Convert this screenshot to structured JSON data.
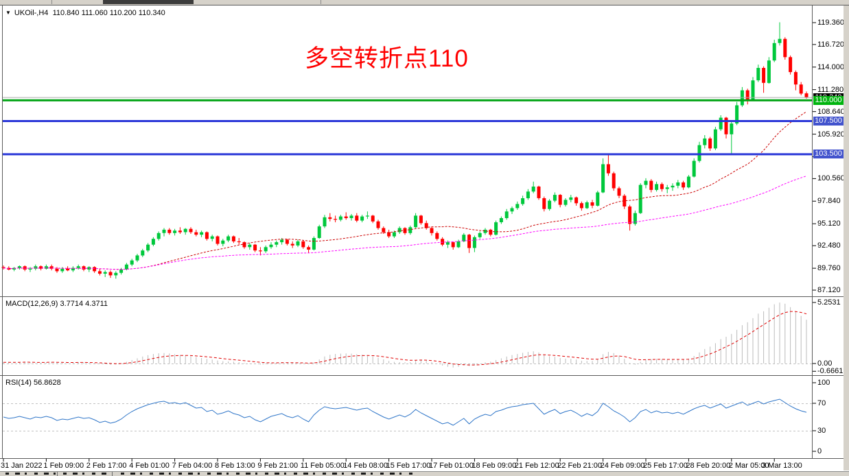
{
  "chart_header": {
    "dropdown_icon": "▼",
    "symbol": "UKOil-,H4",
    "open": "110.840",
    "high": "111.060",
    "low": "110.200",
    "close": "110.340"
  },
  "annotation": {
    "text": "多空转折点110",
    "color": "#FF0000"
  },
  "macd_panel": {
    "title": "MACD(12,26,9)",
    "current": "3.7714 4.3711"
  },
  "rsi_panel": {
    "title": "RSI(14)",
    "current": "56.8628"
  },
  "colors": {
    "candle_up": "#00C83C",
    "candle_down": "#FF0000",
    "ma_fast": "#CC0000",
    "ma_slow": "#FF00FF",
    "price_line": "#ABABAB",
    "macd_hist": "#BBBBBB",
    "macd_signal": "#E00000",
    "rsi_line": "#2E75C8",
    "level_dash": "#C0C0C0",
    "border": "#5A5A5A"
  },
  "chart_data": {
    "type": "candlestick",
    "symbol": "UKOil-",
    "timeframe": "H4",
    "title_ohlc": [
      110.84,
      111.06,
      110.2,
      110.34
    ],
    "price_ticks": [
      {
        "label": "119.360",
        "value": 119.36
      },
      {
        "label": "116.720",
        "value": 116.72
      },
      {
        "label": "114.000",
        "value": 114.0
      },
      {
        "label": "111.280",
        "value": 111.28
      },
      {
        "label": "108.640",
        "value": 108.64
      },
      {
        "label": "105.920",
        "value": 105.92
      },
      {
        "label": "103.200",
        "value": 103.2
      },
      {
        "label": "100.560",
        "value": 100.56
      },
      {
        "label": "97.840",
        "value": 97.84
      },
      {
        "label": "95.120",
        "value": 95.12
      },
      {
        "label": "92.480",
        "value": 92.48
      },
      {
        "label": "89.760",
        "value": 89.76
      },
      {
        "label": "87.120",
        "value": 87.12
      }
    ],
    "hlines": [
      {
        "label": "110.000",
        "value": 110.0,
        "line_color": "#00A313",
        "badge_color": "#00B40E"
      },
      {
        "label": "107.500",
        "value": 107.5,
        "line_color": "#2936D8",
        "badge_color": "#4253CD"
      },
      {
        "label": "103.500",
        "value": 103.5,
        "line_color": "#2936D8",
        "badge_color": "#4253CD"
      }
    ],
    "current_price": {
      "label": "110.340",
      "value": 110.34
    },
    "time_labels": [
      "31 Jan 2022",
      "1 Feb 09:00",
      "2 Feb 17:00",
      "4 Feb 01:00",
      "7 Feb 04:00",
      "8 Feb 13:00",
      "9 Feb 21:00",
      "11 Feb 05:00",
      "14 Feb 08:00",
      "15 Feb 17:00",
      "17 Feb 01:00",
      "18 Feb 09:00",
      "21 Feb 12:00",
      "22 Feb 21:00",
      "24 Feb 09:00",
      "25 Feb 17:00",
      "28 Feb 20:00",
      "2 Mar 05:00",
      "3 Mar 13:00"
    ],
    "bars_per_label": 8,
    "ma_fast_period": 26,
    "ma_slow_period": 75,
    "candles": [
      [
        89.9,
        90.1,
        89.6,
        89.8
      ],
      [
        89.8,
        90.0,
        89.5,
        89.6
      ],
      [
        89.6,
        89.9,
        89.4,
        89.8
      ],
      [
        89.8,
        90.1,
        89.6,
        90.0
      ],
      [
        90.0,
        90.1,
        89.4,
        89.6
      ],
      [
        89.6,
        89.9,
        89.3,
        89.7
      ],
      [
        89.7,
        90.2,
        89.5,
        90.0
      ],
      [
        90.0,
        90.1,
        89.5,
        89.7
      ],
      [
        89.7,
        90.2,
        89.6,
        90.0
      ],
      [
        90.0,
        90.2,
        89.5,
        89.7
      ],
      [
        89.7,
        89.9,
        89.2,
        89.4
      ],
      [
        89.4,
        89.9,
        89.2,
        89.7
      ],
      [
        89.7,
        90.0,
        89.4,
        89.5
      ],
      [
        89.5,
        90.0,
        89.3,
        89.8
      ],
      [
        89.8,
        90.2,
        89.6,
        90.0
      ],
      [
        90.0,
        90.1,
        89.4,
        89.6
      ],
      [
        89.6,
        90.0,
        89.3,
        89.9
      ],
      [
        89.9,
        90.0,
        89.2,
        89.4
      ],
      [
        89.4,
        89.7,
        88.9,
        89.1
      ],
      [
        89.1,
        89.5,
        88.7,
        89.3
      ],
      [
        89.3,
        89.5,
        88.6,
        88.9
      ],
      [
        88.9,
        89.4,
        88.5,
        89.2
      ],
      [
        89.2,
        89.8,
        89.0,
        89.6
      ],
      [
        89.6,
        90.4,
        89.5,
        90.2
      ],
      [
        90.2,
        90.9,
        90.0,
        90.7
      ],
      [
        90.7,
        91.5,
        90.5,
        91.3
      ],
      [
        91.3,
        92.1,
        91.1,
        91.9
      ],
      [
        91.9,
        92.8,
        91.7,
        92.6
      ],
      [
        92.6,
        93.5,
        92.4,
        93.3
      ],
      [
        93.3,
        94.2,
        93.1,
        94.0
      ],
      [
        94.0,
        94.6,
        93.6,
        94.4
      ],
      [
        94.4,
        94.6,
        93.8,
        94.0
      ],
      [
        94.0,
        94.5,
        93.7,
        94.3
      ],
      [
        94.3,
        94.7,
        93.9,
        94.1
      ],
      [
        94.1,
        94.6,
        93.8,
        94.5
      ],
      [
        94.5,
        94.7,
        93.9,
        94.1
      ],
      [
        94.1,
        94.4,
        93.6,
        93.8
      ],
      [
        93.8,
        94.3,
        93.5,
        94.1
      ],
      [
        94.1,
        94.2,
        93.1,
        93.3
      ],
      [
        93.3,
        93.8,
        93.0,
        93.6
      ],
      [
        93.6,
        93.7,
        92.5,
        92.7
      ],
      [
        92.7,
        93.3,
        92.4,
        93.1
      ],
      [
        93.1,
        93.8,
        92.9,
        93.6
      ],
      [
        93.6,
        93.7,
        92.8,
        93.0
      ],
      [
        93.0,
        93.4,
        92.6,
        92.9
      ],
      [
        92.9,
        93.0,
        92.1,
        92.3
      ],
      [
        92.3,
        92.8,
        92.0,
        92.6
      ],
      [
        92.6,
        92.7,
        91.7,
        91.9
      ],
      [
        91.9,
        92.3,
        91.3,
        91.8
      ],
      [
        91.8,
        92.5,
        91.6,
        92.3
      ],
      [
        92.3,
        92.9,
        92.1,
        92.6
      ],
      [
        92.6,
        93.1,
        92.3,
        92.9
      ],
      [
        92.9,
        93.4,
        92.6,
        93.2
      ],
      [
        93.2,
        93.3,
        92.5,
        92.7
      ],
      [
        92.7,
        93.0,
        92.2,
        92.5
      ],
      [
        92.5,
        93.2,
        92.3,
        93.0
      ],
      [
        93.0,
        93.1,
        92.1,
        92.3
      ],
      [
        92.3,
        92.5,
        91.6,
        92.0
      ],
      [
        92.0,
        93.6,
        91.9,
        93.4
      ],
      [
        93.4,
        95.0,
        93.3,
        94.8
      ],
      [
        94.8,
        96.2,
        94.6,
        95.9
      ],
      [
        95.9,
        96.4,
        95.4,
        95.7
      ],
      [
        95.7,
        96.1,
        95.3,
        95.6
      ],
      [
        95.6,
        96.2,
        95.4,
        96.0
      ],
      [
        96.0,
        96.5,
        95.6,
        95.8
      ],
      [
        95.8,
        96.3,
        95.5,
        96.1
      ],
      [
        96.1,
        96.4,
        95.3,
        95.5
      ],
      [
        95.5,
        96.2,
        95.3,
        96.0
      ],
      [
        96.0,
        96.6,
        95.7,
        96.1
      ],
      [
        96.1,
        96.2,
        95.2,
        95.4
      ],
      [
        95.4,
        95.6,
        94.4,
        94.6
      ],
      [
        94.6,
        94.8,
        93.9,
        94.1
      ],
      [
        94.1,
        94.4,
        93.4,
        93.6
      ],
      [
        93.6,
        94.3,
        93.4,
        94.1
      ],
      [
        94.1,
        94.8,
        93.9,
        94.6
      ],
      [
        94.6,
        94.7,
        93.8,
        94.0
      ],
      [
        94.0,
        94.9,
        93.8,
        94.7
      ],
      [
        94.7,
        96.4,
        94.6,
        96.1
      ],
      [
        96.1,
        96.2,
        95.0,
        95.2
      ],
      [
        95.2,
        95.5,
        94.4,
        94.6
      ],
      [
        94.6,
        94.8,
        93.7,
        94.0
      ],
      [
        94.0,
        94.2,
        93.1,
        93.3
      ],
      [
        93.3,
        93.5,
        92.4,
        92.6
      ],
      [
        92.6,
        93.1,
        92.2,
        92.9
      ],
      [
        92.9,
        93.0,
        92.0,
        92.3
      ],
      [
        92.3,
        93.2,
        92.2,
        93.0
      ],
      [
        93.0,
        94.0,
        92.9,
        93.8
      ],
      [
        93.8,
        93.9,
        91.6,
        92.2
      ],
      [
        92.2,
        93.7,
        91.7,
        93.5
      ],
      [
        93.5,
        94.2,
        93.3,
        94.0
      ],
      [
        94.0,
        94.6,
        93.8,
        94.4
      ],
      [
        94.4,
        94.5,
        93.6,
        93.8
      ],
      [
        93.8,
        95.5,
        93.7,
        95.3
      ],
      [
        95.3,
        96.0,
        95.1,
        95.8
      ],
      [
        95.8,
        96.9,
        95.6,
        96.6
      ],
      [
        96.6,
        97.2,
        96.3,
        97.0
      ],
      [
        97.0,
        97.8,
        96.8,
        97.5
      ],
      [
        97.5,
        98.5,
        97.3,
        98.2
      ],
      [
        98.2,
        99.3,
        98.0,
        99.0
      ],
      [
        99.0,
        100.2,
        98.8,
        99.6
      ],
      [
        99.6,
        99.7,
        98.0,
        98.2
      ],
      [
        98.2,
        98.4,
        96.6,
        96.9
      ],
      [
        96.9,
        98.1,
        96.7,
        97.9
      ],
      [
        97.9,
        98.9,
        97.7,
        98.6
      ],
      [
        98.6,
        98.7,
        97.1,
        97.4
      ],
      [
        97.4,
        98.2,
        97.2,
        98.0
      ],
      [
        98.0,
        98.6,
        97.7,
        98.3
      ],
      [
        98.3,
        98.4,
        97.3,
        97.6
      ],
      [
        97.6,
        97.8,
        96.7,
        97.0
      ],
      [
        97.0,
        97.9,
        96.9,
        97.7
      ],
      [
        97.7,
        98.0,
        97.0,
        97.3
      ],
      [
        97.3,
        99.1,
        97.2,
        98.9
      ],
      [
        98.9,
        103.0,
        98.8,
        102.3
      ],
      [
        102.3,
        103.5,
        100.9,
        101.2
      ],
      [
        101.2,
        101.4,
        99.1,
        99.4
      ],
      [
        99.4,
        99.6,
        98.2,
        98.5
      ],
      [
        98.5,
        98.7,
        96.9,
        97.2
      ],
      [
        97.2,
        97.4,
        94.3,
        95.1
      ],
      [
        95.1,
        96.7,
        94.9,
        96.4
      ],
      [
        96.4,
        100.0,
        96.3,
        99.8
      ],
      [
        99.8,
        100.6,
        99.4,
        100.3
      ],
      [
        100.3,
        100.5,
        98.9,
        99.2
      ],
      [
        99.2,
        100.2,
        99.0,
        99.9
      ],
      [
        99.9,
        100.1,
        99.0,
        99.3
      ],
      [
        99.3,
        99.8,
        98.8,
        99.5
      ],
      [
        99.5,
        100.0,
        99.1,
        99.7
      ],
      [
        99.7,
        100.4,
        99.4,
        100.1
      ],
      [
        100.1,
        100.3,
        99.2,
        99.5
      ],
      [
        99.5,
        101.0,
        99.4,
        100.8
      ],
      [
        100.8,
        103.0,
        100.7,
        102.7
      ],
      [
        102.7,
        105.0,
        102.5,
        104.6
      ],
      [
        104.6,
        105.8,
        104.2,
        105.4
      ],
      [
        105.4,
        105.6,
        103.9,
        104.2
      ],
      [
        104.2,
        106.8,
        104.0,
        106.5
      ],
      [
        106.5,
        108.2,
        106.3,
        107.9
      ],
      [
        107.9,
        108.0,
        105.4,
        105.9
      ],
      [
        105.9,
        107.5,
        103.6,
        107.2
      ],
      [
        107.2,
        109.8,
        107.0,
        109.4
      ],
      [
        109.4,
        111.6,
        109.2,
        111.2
      ],
      [
        111.2,
        111.4,
        109.5,
        110.1
      ],
      [
        110.1,
        112.8,
        109.9,
        112.4
      ],
      [
        112.4,
        114.3,
        112.2,
        113.9
      ],
      [
        113.9,
        114.1,
        110.9,
        112.1
      ],
      [
        112.1,
        115.2,
        112.0,
        114.8
      ],
      [
        114.8,
        117.3,
        114.6,
        116.9
      ],
      [
        116.9,
        119.4,
        116.6,
        117.4
      ],
      [
        117.4,
        117.6,
        114.9,
        115.2
      ],
      [
        115.2,
        115.4,
        113.1,
        113.4
      ],
      [
        113.4,
        113.6,
        111.2,
        111.9
      ],
      [
        111.9,
        112.2,
        110.6,
        110.8
      ],
      [
        110.84,
        111.06,
        110.2,
        110.34
      ]
    ],
    "subcharts": [
      {
        "type": "bar",
        "name": "MACD(12,26,9)",
        "current_macd": 3.7714,
        "current_signal": 4.3711,
        "axis_labels": [
          {
            "label": "5.2531",
            "value": 5.2531
          },
          {
            "label": "0.00",
            "value": 0
          },
          {
            "label": "-0.6661",
            "value": -0.6661
          }
        ],
        "values": [
          0.1,
          0.14,
          0.08,
          0.12,
          0.16,
          0.1,
          0.05,
          0.08,
          0.12,
          0.15,
          0.1,
          0.06,
          0.04,
          0.08,
          0.12,
          0.1,
          0.06,
          0.03,
          -0.02,
          -0.06,
          -0.1,
          -0.08,
          0.02,
          0.15,
          0.3,
          0.45,
          0.6,
          0.72,
          0.82,
          0.88,
          0.9,
          0.86,
          0.8,
          0.74,
          0.7,
          0.64,
          0.55,
          0.48,
          0.4,
          0.34,
          0.26,
          0.2,
          0.18,
          0.16,
          0.12,
          0.06,
          0.02,
          -0.04,
          -0.08,
          -0.06,
          0.0,
          0.06,
          0.12,
          0.1,
          0.04,
          0.06,
          0.02,
          -0.04,
          0.1,
          0.35,
          0.6,
          0.75,
          0.82,
          0.85,
          0.87,
          0.85,
          0.8,
          0.76,
          0.72,
          0.62,
          0.5,
          0.36,
          0.22,
          0.14,
          0.12,
          0.1,
          0.12,
          0.3,
          0.34,
          0.26,
          0.12,
          -0.02,
          -0.18,
          -0.28,
          -0.34,
          -0.28,
          -0.16,
          -0.22,
          -0.14,
          -0.02,
          0.1,
          0.16,
          0.3,
          0.45,
          0.6,
          0.72,
          0.82,
          0.92,
          1.0,
          1.05,
          0.95,
          0.75,
          0.62,
          0.58,
          0.48,
          0.42,
          0.4,
          0.34,
          0.24,
          0.22,
          0.22,
          0.35,
          0.8,
          1.0,
          0.9,
          0.68,
          0.4,
          0.05,
          -0.1,
          0.15,
          0.35,
          0.38,
          0.4,
          0.38,
          0.35,
          0.34,
          0.36,
          0.34,
          0.42,
          0.65,
          0.95,
          1.25,
          1.45,
          1.75,
          2.1,
          2.3,
          2.55,
          2.9,
          3.3,
          3.55,
          3.9,
          4.3,
          4.5,
          4.8,
          5.1,
          5.25,
          5.15,
          4.85,
          4.45,
          4.1,
          3.77
        ]
      },
      {
        "type": "line",
        "name": "RSI(14)",
        "current": 56.8628,
        "range": [
          0,
          100
        ],
        "levels": [
          70,
          30
        ],
        "axis_labels": [
          {
            "label": "100",
            "value": 100
          },
          {
            "label": "70",
            "value": 70
          },
          {
            "label": "30",
            "value": 30
          },
          {
            "label": "0",
            "value": 0
          }
        ],
        "values": [
          50,
          48,
          49,
          51,
          49,
          47,
          50,
          49,
          51,
          49,
          45,
          47,
          46,
          48,
          50,
          48,
          49,
          46,
          42,
          44,
          41,
          43,
          47,
          53,
          58,
          62,
          65,
          68,
          70,
          72,
          73,
          70,
          71,
          69,
          71,
          67,
          63,
          64,
          58,
          60,
          54,
          56,
          59,
          55,
          53,
          49,
          51,
          46,
          43,
          47,
          51,
          53,
          55,
          51,
          49,
          52,
          47,
          43,
          53,
          60,
          65,
          63,
          62,
          63,
          64,
          62,
          60,
          62,
          63,
          58,
          54,
          50,
          47,
          50,
          53,
          50,
          54,
          61,
          56,
          52,
          48,
          44,
          40,
          42,
          38,
          43,
          48,
          40,
          47,
          51,
          54,
          52,
          58,
          60,
          63,
          65,
          66,
          68,
          69,
          70,
          62,
          54,
          58,
          61,
          55,
          58,
          60,
          56,
          51,
          55,
          52,
          58,
          70,
          65,
          59,
          55,
          50,
          43,
          49,
          58,
          61,
          56,
          59,
          56,
          57,
          55,
          57,
          54,
          58,
          62,
          65,
          67,
          63,
          66,
          69,
          63,
          66,
          69,
          72,
          67,
          70,
          73,
          69,
          72,
          74,
          76,
          71,
          66,
          62,
          59,
          56.86
        ]
      }
    ]
  }
}
